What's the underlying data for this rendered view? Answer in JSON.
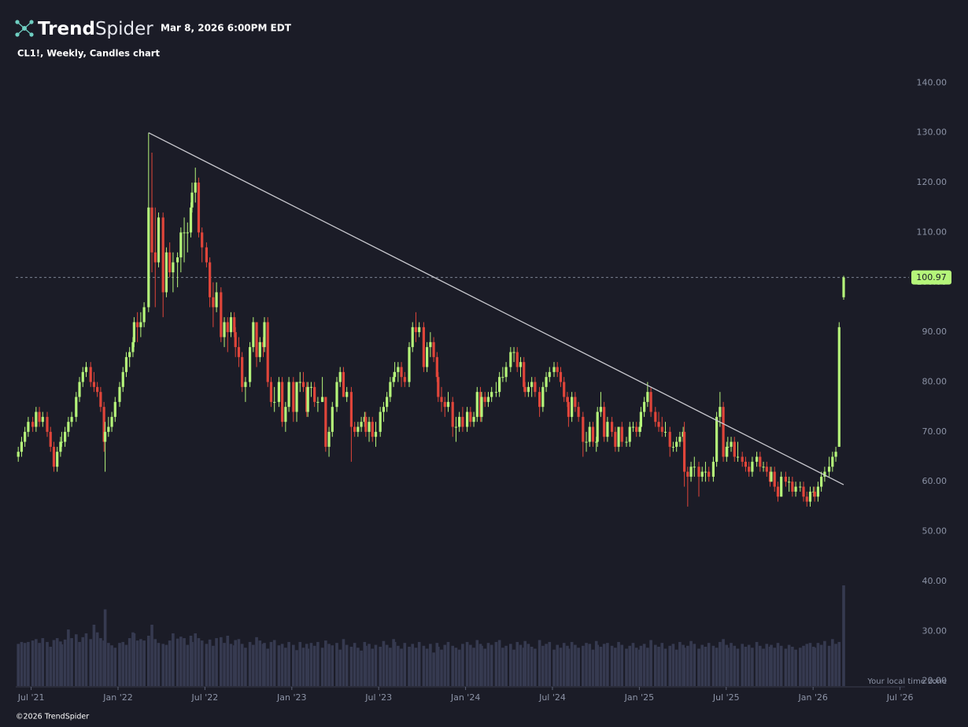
{
  "header": {
    "brand": [
      "Trend",
      "Spider"
    ],
    "timestamp": "Mar 8, 2026 6:00PM EDT",
    "subtitle": "CL1!, Weekly, Candles chart"
  },
  "footer": {
    "timezone": "Your local time zone",
    "copyright": "©2026 TrendSpider"
  },
  "chart_data": {
    "type": "candlestick",
    "up_color": "#b5f57a",
    "down_color": "#e0453a",
    "volume_color": "#363a50",
    "trendline_color": "#c9c9cf",
    "ylim": [
      19,
      144
    ],
    "yticks": [
      {
        "value": 20,
        "label": "20.00"
      },
      {
        "value": 30,
        "label": "30.00"
      },
      {
        "value": 40,
        "label": "40.00"
      },
      {
        "value": 50,
        "label": "50.00"
      },
      {
        "value": 60,
        "label": "60.00"
      },
      {
        "value": 70,
        "label": "70.00"
      },
      {
        "value": 80,
        "label": "80.00"
      },
      {
        "value": 90,
        "label": "90.00"
      },
      {
        "value": 100,
        "label": "100.00"
      },
      {
        "value": 110,
        "label": "110.00"
      },
      {
        "value": 120,
        "label": "120.00"
      },
      {
        "value": 130,
        "label": "130.00"
      },
      {
        "value": 140,
        "label": "140.00"
      }
    ],
    "xticks": [
      {
        "value": "2021-07",
        "label": "Jul '21"
      },
      {
        "value": "2022-01",
        "label": "Jan '22"
      },
      {
        "value": "2022-07",
        "label": "Jul '22"
      },
      {
        "value": "2023-01",
        "label": "Jan '23"
      },
      {
        "value": "2023-07",
        "label": "Jul '23"
      },
      {
        "value": "2024-01",
        "label": "Jan '24"
      },
      {
        "value": "2024-07",
        "label": "Jul '24"
      },
      {
        "value": "2025-01",
        "label": "Jan '25"
      },
      {
        "value": "2025-07",
        "label": "Jul '25"
      },
      {
        "value": "2026-01",
        "label": "Jan '26"
      },
      {
        "value": "2026-07",
        "label": "Jul '26"
      }
    ],
    "last_price": 100.97,
    "trendline": {
      "x": [
        "2022-03",
        "2026-03"
      ],
      "y": [
        130,
        59.4
      ]
    },
    "x": [
      "2021-06",
      "2021-06",
      "2021-06",
      "2021-06",
      "2021-07",
      "2021-07",
      "2021-07",
      "2021-07",
      "2021-08",
      "2021-08",
      "2021-08",
      "2021-08",
      "2021-08",
      "2021-09",
      "2021-09",
      "2021-09",
      "2021-09",
      "2021-10",
      "2021-10",
      "2021-10",
      "2021-10",
      "2021-11",
      "2021-11",
      "2021-11",
      "2021-11",
      "2021-11",
      "2021-12",
      "2021-12",
      "2021-12",
      "2021-12",
      "2022-01",
      "2022-01",
      "2022-01",
      "2022-01",
      "2022-01",
      "2022-02",
      "2022-02",
      "2022-02",
      "2022-02",
      "2022-03",
      "2022-03",
      "2022-03",
      "2022-03",
      "2022-04",
      "2022-04",
      "2022-04",
      "2022-04",
      "2022-05",
      "2022-05",
      "2022-05",
      "2022-05",
      "2022-05",
      "2022-06",
      "2022-06",
      "2022-06",
      "2022-06",
      "2022-07",
      "2022-07",
      "2022-07",
      "2022-07",
      "2022-08",
      "2022-08",
      "2022-08",
      "2022-08",
      "2022-08",
      "2022-09",
      "2022-09",
      "2022-09",
      "2022-09",
      "2022-10",
      "2022-10",
      "2022-10",
      "2022-10",
      "2022-10",
      "2022-11",
      "2022-11",
      "2022-11",
      "2022-11",
      "2022-12",
      "2022-12",
      "2022-12",
      "2022-12",
      "2023-01",
      "2023-01",
      "2023-01",
      "2023-01",
      "2023-01",
      "2023-02",
      "2023-02",
      "2023-02",
      "2023-02",
      "2023-03",
      "2023-03",
      "2023-03",
      "2023-03",
      "2023-04",
      "2023-04",
      "2023-04",
      "2023-04",
      "2023-05",
      "2023-05",
      "2023-05",
      "2023-05",
      "2023-05",
      "2023-06",
      "2023-06",
      "2023-06",
      "2023-06",
      "2023-07",
      "2023-07",
      "2023-07",
      "2023-07",
      "2023-07",
      "2023-08",
      "2023-08",
      "2023-08",
      "2023-08",
      "2023-09",
      "2023-09",
      "2023-09",
      "2023-09",
      "2023-10",
      "2023-10",
      "2023-10",
      "2023-10",
      "2023-10",
      "2023-11",
      "2023-11",
      "2023-11",
      "2023-11",
      "2023-12",
      "2023-12",
      "2023-12",
      "2023-12",
      "2024-01",
      "2024-01",
      "2024-01",
      "2024-01",
      "2024-01",
      "2024-02",
      "2024-02",
      "2024-02",
      "2024-02",
      "2024-03",
      "2024-03",
      "2024-03",
      "2024-03",
      "2024-04",
      "2024-04",
      "2024-04",
      "2024-04",
      "2024-04",
      "2024-05",
      "2024-05",
      "2024-05",
      "2024-05",
      "2024-06",
      "2024-06",
      "2024-06",
      "2024-06",
      "2024-07",
      "2024-07",
      "2024-07",
      "2024-07",
      "2024-07",
      "2024-08",
      "2024-08",
      "2024-08",
      "2024-08",
      "2024-09",
      "2024-09",
      "2024-09",
      "2024-09",
      "2024-09",
      "2024-10",
      "2024-10",
      "2024-10",
      "2024-10",
      "2024-11",
      "2024-11",
      "2024-11",
      "2024-11",
      "2024-12",
      "2024-12",
      "2024-12",
      "2024-12",
      "2024-12",
      "2025-01",
      "2025-01",
      "2025-01",
      "2025-01",
      "2025-02",
      "2025-02",
      "2025-02",
      "2025-02",
      "2025-03",
      "2025-03",
      "2025-03",
      "2025-03",
      "2025-03",
      "2025-04",
      "2025-04",
      "2025-04",
      "2025-04",
      "2025-05",
      "2025-05",
      "2025-05",
      "2025-05",
      "2025-06",
      "2025-06",
      "2025-06",
      "2025-06",
      "2025-06",
      "2025-07",
      "2025-07",
      "2025-07",
      "2025-07",
      "2025-08",
      "2025-08",
      "2025-08",
      "2025-08",
      "2025-09",
      "2025-09",
      "2025-09",
      "2025-09",
      "2025-09",
      "2025-10",
      "2025-10",
      "2025-10",
      "2025-10",
      "2025-11",
      "2025-11",
      "2025-11",
      "2025-11",
      "2025-12",
      "2025-12",
      "2025-12",
      "2025-12",
      "2025-12",
      "2026-01",
      "2026-01",
      "2026-01",
      "2026-01",
      "2026-02",
      "2026-02",
      "2026-02",
      "2026-02",
      "2026-03"
    ],
    "open": [
      65,
      66,
      68,
      70,
      72,
      71,
      74,
      72,
      73,
      70,
      67,
      63,
      66,
      68,
      68,
      70,
      72,
      73,
      77,
      80,
      82,
      83,
      80,
      79,
      78,
      75,
      68,
      70,
      71,
      73,
      76,
      79,
      82,
      85,
      86,
      88,
      92,
      91,
      92,
      95,
      115,
      106,
      104,
      113,
      98,
      106,
      102,
      104,
      105,
      110,
      110,
      110,
      115,
      118,
      120,
      110,
      107,
      104,
      97,
      95,
      98,
      89,
      92,
      90,
      93,
      90,
      87,
      85,
      79,
      80,
      87,
      92,
      85,
      88,
      87,
      92,
      80,
      76,
      76,
      80,
      72,
      75,
      80,
      74,
      80,
      80,
      79,
      74,
      79,
      79,
      76,
      76,
      77,
      67,
      70,
      75,
      80,
      82,
      77,
      78,
      71,
      70,
      71,
      72,
      73,
      70,
      72,
      69,
      70,
      74,
      75,
      77,
      80,
      81,
      82,
      83,
      81,
      80,
      87,
      91,
      90,
      91,
      83,
      87,
      88,
      85,
      81,
      77,
      76,
      75,
      76,
      71,
      71,
      73,
      71,
      74,
      72,
      73,
      78,
      73,
      77,
      76,
      77,
      78,
      78,
      81,
      81,
      83,
      86,
      86,
      83,
      84,
      79,
      78,
      79,
      80,
      78,
      75,
      79,
      81,
      82,
      83,
      82,
      80,
      77,
      76,
      73,
      77,
      75,
      73,
      68,
      68,
      71,
      68,
      68,
      74,
      75,
      69,
      72,
      70,
      67,
      71,
      68,
      68,
      71,
      71,
      70,
      71,
      74,
      76,
      78,
      74,
      72,
      71,
      70,
      70,
      67,
      67,
      68,
      69,
      70,
      62,
      61,
      63,
      63,
      61,
      62,
      62,
      61,
      64,
      73,
      75,
      65,
      67,
      67,
      68,
      65,
      65,
      64,
      63,
      62,
      64,
      65,
      63,
      63,
      62,
      60,
      62,
      59,
      57,
      61,
      60,
      60,
      58,
      59,
      59,
      57,
      56,
      58,
      58,
      57,
      59,
      61,
      62,
      63,
      65,
      67,
      97
    ],
    "high": [
      67,
      69,
      71,
      73,
      73,
      75,
      75,
      74,
      74,
      71,
      68,
      67,
      69,
      70,
      71,
      73,
      74,
      78,
      81,
      83,
      84,
      84,
      82,
      80,
      79,
      76,
      72,
      73,
      74,
      77,
      80,
      83,
      86,
      87,
      89,
      93,
      94,
      94,
      96,
      130,
      126,
      115,
      114,
      114,
      107,
      108,
      106,
      106,
      111,
      113,
      112,
      116,
      120,
      123,
      121,
      111,
      108,
      105,
      100,
      100,
      99,
      93,
      93,
      94,
      94,
      91,
      89,
      86,
      81,
      88,
      93,
      92,
      89,
      89,
      93,
      93,
      81,
      79,
      81,
      81,
      76,
      81,
      81,
      80,
      82,
      82,
      80,
      80,
      80,
      80,
      77,
      81,
      77,
      71,
      76,
      81,
      83,
      83,
      79,
      79,
      72,
      72,
      73,
      74,
      74,
      73,
      73,
      72,
      75,
      76,
      78,
      81,
      82,
      84,
      84,
      84,
      82,
      88,
      92,
      94,
      92,
      92,
      88,
      90,
      89,
      86,
      82,
      79,
      77,
      78,
      77,
      73,
      74,
      75,
      75,
      75,
      74,
      79,
      79,
      78,
      78,
      78,
      79,
      80,
      82,
      83,
      84,
      87,
      87,
      87,
      85,
      85,
      80,
      80,
      81,
      81,
      79,
      80,
      82,
      83,
      84,
      84,
      83,
      81,
      78,
      77,
      78,
      78,
      76,
      74,
      70,
      72,
      72,
      69,
      75,
      78,
      76,
      73,
      73,
      71,
      71,
      72,
      69,
      72,
      72,
      72,
      72,
      75,
      77,
      80,
      79,
      75,
      74,
      73,
      72,
      71,
      68,
      69,
      70,
      71,
      72,
      63,
      64,
      65,
      64,
      63,
      64,
      63,
      65,
      74,
      78,
      76,
      68,
      69,
      69,
      69,
      68,
      66,
      65,
      64,
      65,
      66,
      66,
      64,
      64,
      63,
      63,
      63,
      60,
      62,
      62,
      61,
      61,
      60,
      60,
      60,
      58,
      59,
      59,
      59,
      60,
      62,
      63,
      65,
      66,
      67,
      92,
      101.3
    ],
    "low": [
      64,
      65,
      67,
      69,
      70,
      70,
      71,
      71,
      69,
      66,
      62,
      62,
      65,
      67,
      67,
      69,
      71,
      72,
      76,
      79,
      81,
      79,
      78,
      77,
      74,
      66,
      62,
      69,
      70,
      72,
      75,
      78,
      81,
      83,
      85,
      87,
      88,
      89,
      91,
      94,
      102,
      95,
      103,
      93,
      97,
      101,
      98,
      99,
      102,
      104,
      106,
      109,
      114,
      116,
      109,
      104,
      103,
      95,
      91,
      94,
      88,
      87,
      86,
      89,
      89,
      85,
      83,
      78,
      76,
      79,
      86,
      83,
      84,
      85,
      86,
      79,
      75,
      74,
      75,
      71,
      70,
      74,
      72,
      72,
      78,
      78,
      73,
      73,
      77,
      75,
      74,
      76,
      66,
      65,
      69,
      74,
      79,
      77,
      76,
      64,
      69,
      69,
      70,
      71,
      69,
      68,
      68,
      67,
      69,
      72,
      74,
      76,
      79,
      80,
      80,
      79,
      79,
      79,
      86,
      88,
      89,
      82,
      82,
      85,
      84,
      80,
      76,
      74,
      73,
      74,
      69,
      68,
      70,
      70,
      70,
      71,
      71,
      72,
      72,
      72,
      75,
      75,
      76,
      77,
      77,
      80,
      80,
      82,
      84,
      82,
      81,
      78,
      77,
      77,
      77,
      77,
      73,
      74,
      78,
      80,
      81,
      81,
      79,
      76,
      75,
      71,
      72,
      74,
      72,
      65,
      66,
      67,
      67,
      66,
      67,
      73,
      68,
      68,
      69,
      66,
      66,
      67,
      67,
      67,
      70,
      69,
      69,
      70,
      73,
      75,
      73,
      71,
      70,
      69,
      69,
      65,
      66,
      66,
      67,
      68,
      59,
      55,
      60,
      61,
      57,
      60,
      60,
      60,
      60,
      63,
      71,
      64,
      64,
      65,
      66,
      64,
      64,
      63,
      62,
      61,
      61,
      63,
      62,
      62,
      61,
      59,
      60,
      58,
      56,
      57,
      59,
      58,
      57,
      57,
      58,
      56,
      55,
      55,
      57,
      56,
      56,
      58,
      60,
      61,
      62,
      64,
      67,
      96.5
    ],
    "close": [
      66,
      68,
      70,
      72,
      71,
      74,
      72,
      73,
      70,
      67,
      63,
      66,
      68,
      68,
      70,
      72,
      73,
      77,
      80,
      82,
      83,
      80,
      79,
      78,
      75,
      68,
      70,
      71,
      73,
      76,
      79,
      82,
      85,
      86,
      88,
      92,
      91,
      92,
      95,
      115,
      106,
      104,
      113,
      98,
      106,
      102,
      104,
      105,
      110,
      110,
      110,
      115,
      118,
      120,
      110,
      107,
      104,
      97,
      95,
      98,
      89,
      92,
      90,
      93,
      90,
      87,
      85,
      79,
      80,
      87,
      92,
      85,
      88,
      87,
      92,
      80,
      76,
      76,
      80,
      72,
      75,
      80,
      74,
      80,
      80,
      79,
      74,
      79,
      79,
      76,
      76,
      77,
      67,
      70,
      75,
      80,
      82,
      77,
      78,
      71,
      70,
      71,
      72,
      73,
      70,
      72,
      69,
      70,
      74,
      75,
      77,
      80,
      81,
      82,
      83,
      81,
      80,
      87,
      91,
      90,
      91,
      83,
      87,
      88,
      85,
      81,
      77,
      76,
      75,
      76,
      71,
      71,
      73,
      71,
      74,
      72,
      73,
      78,
      73,
      77,
      76,
      77,
      78,
      78,
      81,
      81,
      83,
      86,
      86,
      83,
      84,
      79,
      78,
      79,
      80,
      78,
      75,
      79,
      81,
      82,
      83,
      82,
      80,
      77,
      76,
      73,
      77,
      75,
      73,
      68,
      68,
      71,
      68,
      68,
      74,
      75,
      69,
      72,
      70,
      67,
      71,
      68,
      68,
      71,
      71,
      70,
      71,
      74,
      76,
      78,
      74,
      72,
      71,
      70,
      70,
      67,
      67,
      68,
      69,
      70,
      62,
      61,
      63,
      63,
      61,
      62,
      62,
      61,
      64,
      73,
      75,
      65,
      67,
      67,
      68,
      65,
      65,
      64,
      63,
      62,
      64,
      65,
      63,
      63,
      62,
      60,
      62,
      59,
      57,
      61,
      60,
      60,
      58,
      59,
      59,
      57,
      56,
      58,
      58,
      57,
      59,
      61,
      62,
      63,
      65,
      66,
      91,
      100.97
    ],
    "volume": [
      88,
      92,
      90,
      92,
      95,
      98,
      90,
      100,
      92,
      82,
      96,
      100,
      93,
      87,
      97,
      118,
      100,
      108,
      92,
      102,
      110,
      98,
      128,
      112,
      100,
      95,
      160,
      90,
      85,
      80,
      90,
      92,
      86,
      100,
      112,
      110,
      95,
      98,
      95,
      105,
      128,
      98,
      90,
      88,
      86,
      95,
      110,
      99,
      103,
      100,
      86,
      105,
      92,
      110,
      100,
      95,
      88,
      97,
      84,
      100,
      102,
      90,
      105,
      88,
      85,
      96,
      98,
      88,
      80,
      92,
      86,
      102,
      95,
      88,
      90,
      78,
      92,
      96,
      85,
      88,
      80,
      92,
      86,
      75,
      92,
      80,
      88,
      78,
      90,
      84,
      92,
      80,
      95,
      88,
      85,
      90,
      76,
      98,
      86,
      82,
      90,
      80,
      74,
      92,
      84,
      88,
      78,
      86,
      82,
      94,
      86,
      80,
      98,
      92,
      84,
      78,
      90,
      82,
      88,
      80,
      92,
      84,
      78,
      88,
      70,
      90,
      82,
      76,
      86,
      92,
      84,
      80,
      76,
      88,
      92,
      86,
      80,
      96,
      88,
      84,
      78,
      90,
      86,
      92,
      96,
      80,
      84,
      88,
      76,
      92,
      86,
      80,
      94,
      88,
      82,
      78,
      96,
      84,
      88,
      92,
      76,
      86,
      80,
      90,
      84,
      78,
      92,
      86,
      80,
      84,
      90,
      88,
      76,
      94,
      86,
      82,
      88,
      90,
      84,
      80,
      92,
      86,
      78,
      84,
      90,
      80,
      76,
      84,
      88,
      80,
      96,
      86,
      82,
      90,
      78,
      84,
      88,
      76,
      92,
      86,
      80,
      84,
      94,
      88,
      78,
      86,
      82,
      90,
      84,
      80,
      92,
      98,
      86,
      80,
      90,
      84,
      78,
      88,
      82,
      86,
      80,
      92,
      84,
      78,
      88,
      82,
      86,
      80,
      90,
      84,
      78,
      86,
      82,
      76,
      80,
      84,
      88,
      90,
      82,
      80,
      90,
      86,
      94,
      84,
      98,
      88,
      92,
      210
    ]
  }
}
